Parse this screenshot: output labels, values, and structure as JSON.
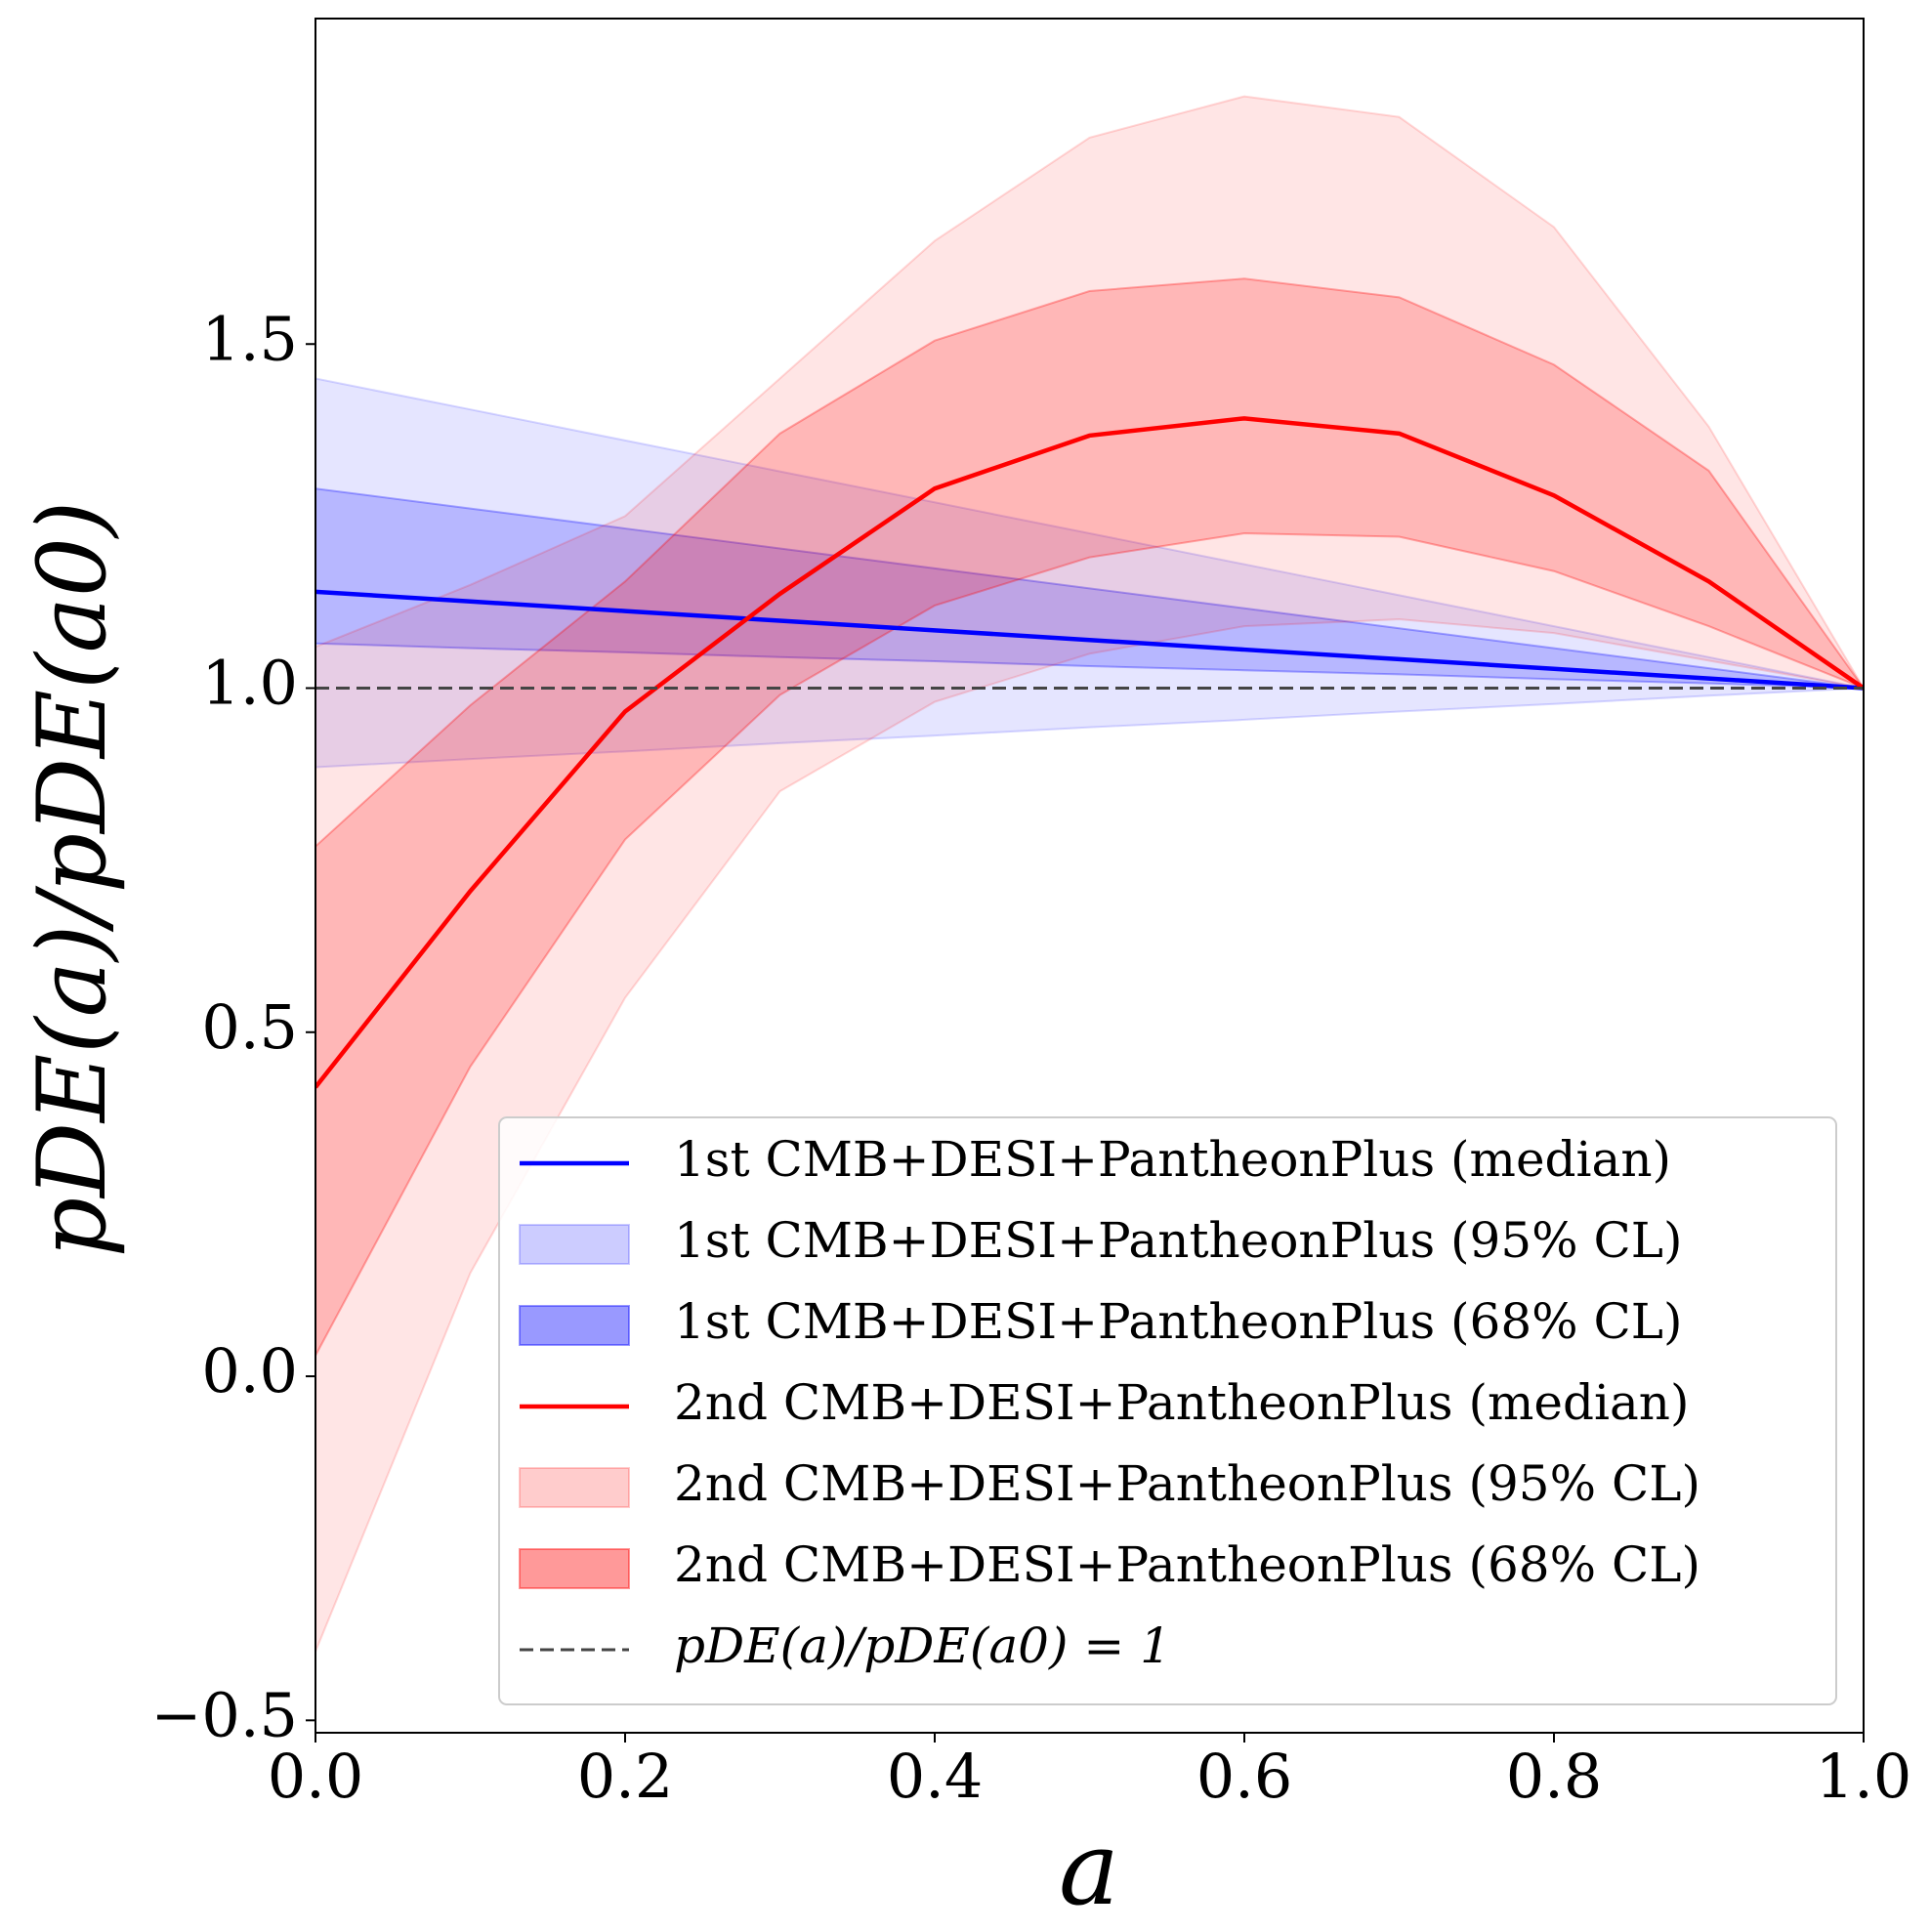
{
  "chart_data": {
    "type": "line",
    "xlabel": "a",
    "ylabel": "pDE(a)/pDE(a0)",
    "x": [
      0,
      0.1,
      0.2,
      0.3,
      0.4,
      0.5,
      0.6,
      0.7,
      0.8,
      0.9,
      1.0
    ],
    "xlim": [
      0,
      1
    ],
    "ylim": [
      -0.518,
      1.973
    ],
    "xticks": [
      {
        "value": 0,
        "label": "0.0"
      },
      0.2,
      0.4,
      0.6,
      0.8,
      {
        "value": 1,
        "label": "1.0"
      }
    ],
    "yticks": [
      {
        "value": -0.5,
        "label": "−0.5"
      },
      {
        "value": 0,
        "label": "0.0"
      },
      0.5,
      {
        "value": 1,
        "label": "1.0"
      },
      1.5
    ],
    "grid": false,
    "legend": "lower right",
    "series": [
      {
        "name": "1st CMB+DESI+PantheonPlus (median)",
        "kind": "line",
        "color": "#0000ff",
        "values": [
          1.14,
          1.126,
          1.112,
          1.098,
          1.084,
          1.07,
          1.056,
          1.042,
          1.028,
          1.014,
          1.0
        ]
      },
      {
        "name": "1st CMB+DESI+PantheonPlus (95% CL)",
        "kind": "band",
        "color": "#0000ff",
        "alpha": 0.1,
        "lower": [
          0.885,
          0.897,
          0.908,
          0.92,
          0.931,
          0.943,
          0.954,
          0.966,
          0.977,
          0.989,
          1.0
        ],
        "upper": [
          1.45,
          1.405,
          1.36,
          1.315,
          1.27,
          1.225,
          1.18,
          1.135,
          1.09,
          1.045,
          1.0
        ]
      },
      {
        "name": "1st CMB+DESI+PantheonPlus (68% CL)",
        "kind": "band",
        "color": "#0000ff",
        "alpha": 0.2,
        "lower": [
          1.065,
          1.058,
          1.052,
          1.045,
          1.039,
          1.032,
          1.026,
          1.02,
          1.013,
          1.007,
          1.0
        ],
        "upper": [
          1.29,
          1.261,
          1.232,
          1.203,
          1.174,
          1.145,
          1.116,
          1.087,
          1.058,
          1.029,
          1.0
        ]
      },
      {
        "name": "2nd CMB+DESI+PantheonPlus (median)",
        "kind": "line",
        "color": "#ff0000",
        "values": [
          0.42,
          0.705,
          0.966,
          1.137,
          1.29,
          1.367,
          1.392,
          1.37,
          1.28,
          1.155,
          1.0
        ]
      },
      {
        "name": "2nd CMB+DESI+PantheonPlus (95% CL)",
        "kind": "band",
        "color": "#ff0000",
        "alpha": 0.1,
        "lower": [
          -0.4,
          0.15,
          0.55,
          0.85,
          0.98,
          1.05,
          1.09,
          1.1,
          1.08,
          1.04,
          1.0
        ],
        "upper": [
          1.06,
          1.15,
          1.25,
          1.45,
          1.65,
          1.8,
          1.86,
          1.83,
          1.67,
          1.38,
          1.0
        ]
      },
      {
        "name": "2nd CMB+DESI+PantheonPlus (68% CL)",
        "kind": "band",
        "color": "#ff0000",
        "alpha": 0.2,
        "lower": [
          0.03,
          0.45,
          0.78,
          0.99,
          1.12,
          1.19,
          1.225,
          1.22,
          1.17,
          1.09,
          1.0
        ],
        "upper": [
          0.77,
          0.975,
          1.155,
          1.37,
          1.505,
          1.577,
          1.595,
          1.568,
          1.47,
          1.316,
          1.0
        ]
      },
      {
        "name": "pDE(a)/pDE(a0) = 1",
        "kind": "line",
        "dashed": true,
        "color": "#444444",
        "values": [
          1,
          1,
          1,
          1,
          1,
          1,
          1,
          1,
          1,
          1,
          1
        ]
      }
    ]
  }
}
